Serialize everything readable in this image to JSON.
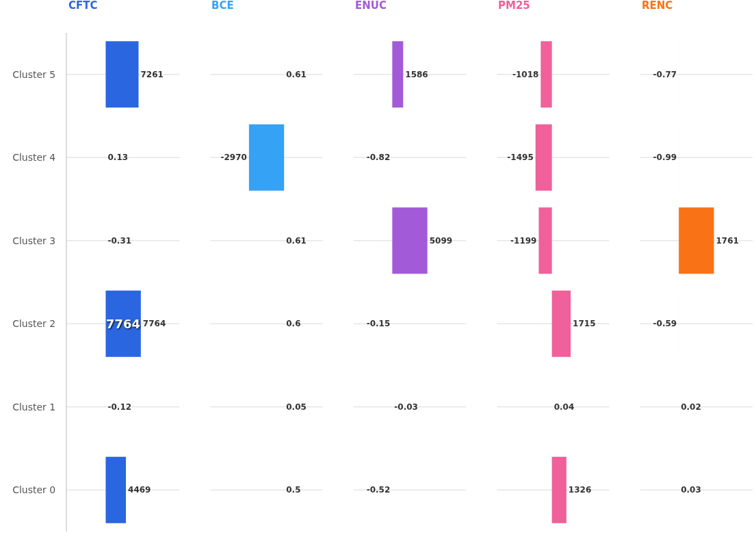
{
  "chart_data": [
    {
      "type": "bar",
      "title": "CFTC",
      "orientation": "horizontal",
      "categories": [
        "Cluster 5",
        "Cluster 4",
        "Cluster 3",
        "Cluster 2",
        "Cluster 1",
        "Cluster 0"
      ],
      "values": [
        7261,
        0.13,
        -0.31,
        7764,
        -0.12,
        4469
      ],
      "color": "#2a66e0",
      "data_labels": true,
      "grid": "y",
      "tick_labels": "y",
      "annotations": [
        "7764"
      ]
    },
    {
      "type": "bar",
      "title": "BCE",
      "orientation": "horizontal",
      "categories": [
        "Cluster 5",
        "Cluster 4",
        "Cluster 3",
        "Cluster 2",
        "Cluster 1",
        "Cluster 0"
      ],
      "values": [
        0.61,
        -2970,
        0.61,
        0.6,
        0.05,
        0.5
      ],
      "color": "#36a2f5",
      "data_labels": true,
      "grid": "y",
      "tick_labels": false
    },
    {
      "type": "bar",
      "title": "ENUC",
      "orientation": "horizontal",
      "categories": [
        "Cluster 5",
        "Cluster 4",
        "Cluster 3",
        "Cluster 2",
        "Cluster 1",
        "Cluster 0"
      ],
      "values": [
        1586,
        -0.82,
        5099,
        -0.15,
        -0.03,
        -0.52
      ],
      "color": "#a35ad8",
      "data_labels": true,
      "grid": "y",
      "tick_labels": false
    },
    {
      "type": "bar",
      "title": "PM25",
      "orientation": "horizontal",
      "categories": [
        "Cluster 5",
        "Cluster 4",
        "Cluster 3",
        "Cluster 2",
        "Cluster 1",
        "Cluster 0"
      ],
      "values": [
        -1018,
        -1495,
        -1199,
        1715,
        0.04,
        1326
      ],
      "color": "#f0609a",
      "data_labels": true,
      "grid": "y",
      "tick_labels": false
    },
    {
      "type": "bar",
      "title": "RENC",
      "orientation": "horizontal",
      "categories": [
        "Cluster 5",
        "Cluster 4",
        "Cluster 3",
        "Cluster 2",
        "Cluster 1",
        "Cluster 0"
      ],
      "values": [
        -0.77,
        -0.99,
        1761,
        -0.59,
        0.02,
        0.03
      ],
      "color": "#f97316",
      "data_labels": true,
      "grid": "y",
      "tick_labels": false
    }
  ]
}
